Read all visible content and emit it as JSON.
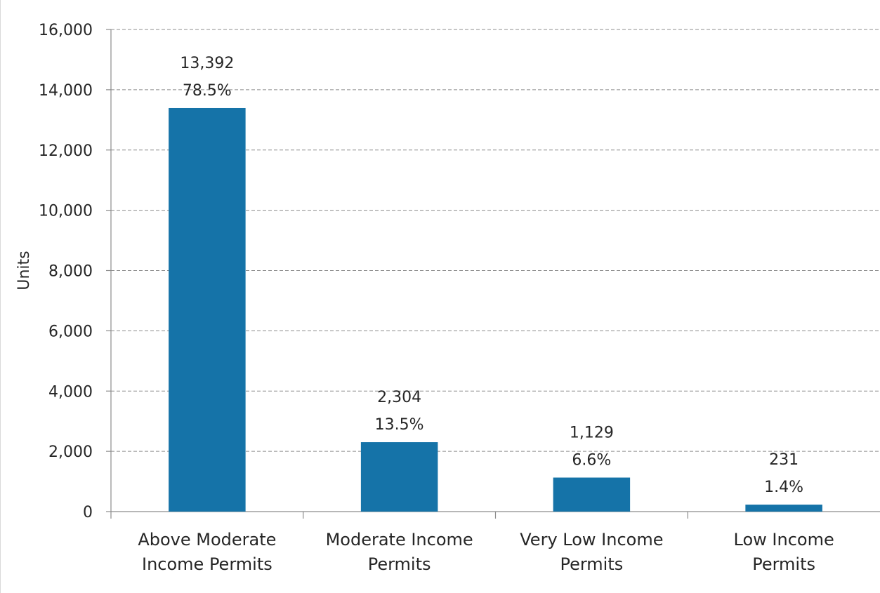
{
  "chart_data": {
    "type": "bar",
    "categories": [
      [
        "Above Moderate",
        "Income Permits"
      ],
      [
        "Moderate Income",
        "Permits"
      ],
      [
        "Very Low Income",
        "Permits"
      ],
      [
        "Low Income",
        "Permits"
      ]
    ],
    "values": [
      13392,
      2304,
      1129,
      231
    ],
    "value_labels": [
      "13,392",
      "2,304",
      "1,129",
      "231"
    ],
    "percent_labels": [
      "78.5%",
      "13.5%",
      "6.6%",
      "1.4%"
    ],
    "title": "",
    "xlabel": "",
    "ylabel": "Units",
    "ylim": [
      0,
      16000
    ],
    "yticks": [
      0,
      2000,
      4000,
      6000,
      8000,
      10000,
      12000,
      14000,
      16000
    ],
    "ytick_labels": [
      "0",
      "2,000",
      "4,000",
      "6,000",
      "8,000",
      "10,000",
      "12,000",
      "14,000",
      "16,000"
    ],
    "grid": true,
    "legend": "none",
    "bar_color": "#1573a8"
  }
}
